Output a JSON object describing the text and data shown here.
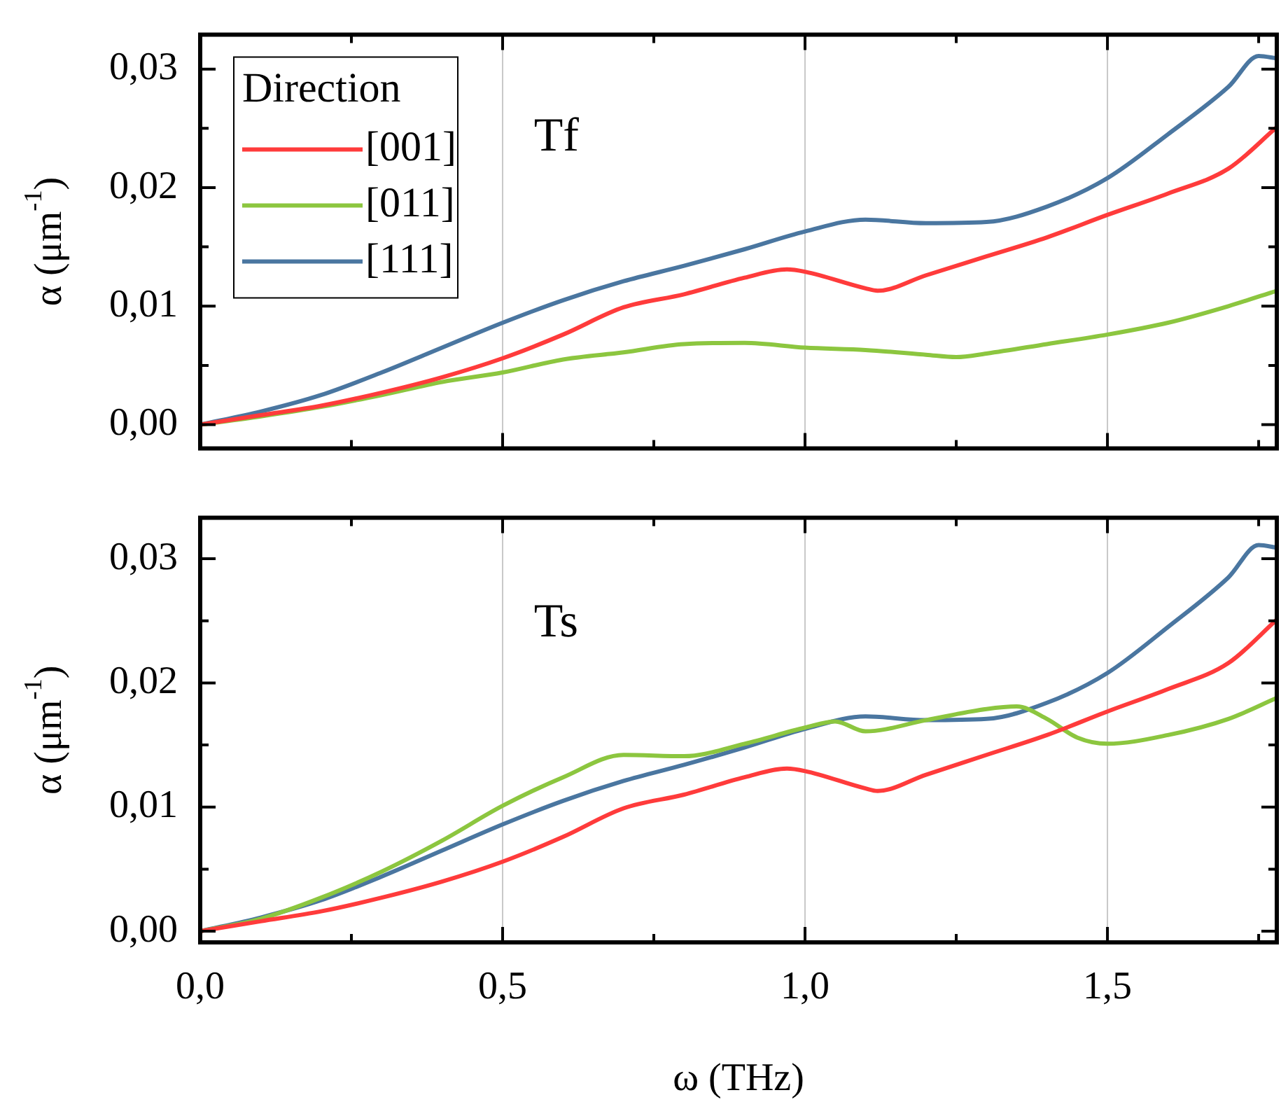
{
  "chart_data": [
    {
      "type": "line",
      "ylabel": "α (μm$^{-1}$)",
      "annotations": [
        "Tf"
      ],
      "legend_title": "Direction",
      "legend": "top left",
      "grid": "x",
      "tick_labels": "y",
      "xlim": [
        0,
        1.78
      ],
      "ylim": [
        -0.002,
        0.0329
      ],
      "xticks": [
        {
          "value": 0,
          "label": null
        },
        {
          "value": 0.25,
          "label": null
        },
        {
          "value": 0.5,
          "label": null
        },
        {
          "value": 0.75,
          "label": null
        },
        {
          "value": 1,
          "label": null
        },
        {
          "value": 1.25,
          "label": null
        },
        {
          "value": 1.5,
          "label": null
        },
        {
          "value": 1.75,
          "label": null
        }
      ],
      "yticks": [
        {
          "value": 0,
          "label": "0,00"
        },
        {
          "value": 0.005,
          "label": null
        },
        {
          "value": 0.01,
          "label": "0,01"
        },
        {
          "value": 0.015,
          "label": null
        },
        {
          "value": 0.02,
          "label": "0,02"
        },
        {
          "value": 0.025,
          "label": null
        },
        {
          "value": 0.03,
          "label": "0,03"
        }
      ],
      "series": [
        {
          "name": "[001]",
          "color": "#ff3b3b",
          "x": [
            0,
            0.1,
            0.2,
            0.3,
            0.4,
            0.5,
            0.6,
            0.7,
            0.8,
            0.9,
            0.97,
            1.0,
            1.1,
            1.12,
            1.2,
            1.3,
            1.4,
            1.5,
            1.6,
            1.7,
            1.78
          ],
          "values": [
            0,
            0.0008,
            0.0016,
            0.0027,
            0.004,
            0.0056,
            0.0076,
            0.0099,
            0.011,
            0.0124,
            0.0131,
            0.0129,
            0.0115,
            0.0113,
            0.0126,
            0.0142,
            0.0158,
            0.0177,
            0.0195,
            0.0216,
            0.0251
          ]
        },
        {
          "name": "[011]",
          "color": "#8cc63f",
          "x": [
            0,
            0.1,
            0.2,
            0.3,
            0.4,
            0.5,
            0.6,
            0.7,
            0.8,
            0.9,
            1.0,
            1.1,
            1.2,
            1.25,
            1.3,
            1.4,
            1.5,
            1.6,
            1.7,
            1.78
          ],
          "values": [
            0,
            0.0007,
            0.0015,
            0.0025,
            0.0036,
            0.0044,
            0.0055,
            0.0061,
            0.0068,
            0.0069,
            0.0065,
            0.0063,
            0.0059,
            0.0057,
            0.006,
            0.0068,
            0.0076,
            0.0086,
            0.01,
            0.0113
          ]
        },
        {
          "name": "[111]",
          "color": "#4a76a0",
          "x": [
            0,
            0.1,
            0.2,
            0.3,
            0.4,
            0.5,
            0.6,
            0.7,
            0.8,
            0.9,
            1.0,
            1.1,
            1.2,
            1.3,
            1.4,
            1.5,
            1.6,
            1.7,
            1.75,
            1.78
          ],
          "values": [
            0,
            0.0011,
            0.0025,
            0.0044,
            0.0065,
            0.0086,
            0.0105,
            0.0121,
            0.0134,
            0.0148,
            0.0163,
            0.0173,
            0.017,
            0.0171,
            0.0184,
            0.0208,
            0.0245,
            0.0285,
            0.0311,
            0.0309
          ]
        }
      ]
    },
    {
      "type": "line",
      "xlabel": "ω (THz)",
      "ylabel": "α (μm$^{-1}$)",
      "annotations": [
        "Ts"
      ],
      "grid": "x",
      "xlim": [
        0,
        1.78
      ],
      "ylim": [
        -0.0009,
        0.0333
      ],
      "xticks": [
        {
          "value": 0,
          "label": "0,0"
        },
        {
          "value": 0.25,
          "label": null
        },
        {
          "value": 0.5,
          "label": "0,5"
        },
        {
          "value": 0.75,
          "label": null
        },
        {
          "value": 1,
          "label": "1,0"
        },
        {
          "value": 1.25,
          "label": null
        },
        {
          "value": 1.5,
          "label": "1,5"
        },
        {
          "value": 1.75,
          "label": null
        }
      ],
      "yticks": [
        {
          "value": 0,
          "label": "0,00"
        },
        {
          "value": 0.005,
          "label": null
        },
        {
          "value": 0.01,
          "label": "0,01"
        },
        {
          "value": 0.015,
          "label": null
        },
        {
          "value": 0.02,
          "label": "0,02"
        },
        {
          "value": 0.025,
          "label": null
        },
        {
          "value": 0.03,
          "label": "0,03"
        }
      ],
      "series": [
        {
          "color": "#ff3b3b",
          "x": [
            0,
            0.1,
            0.2,
            0.3,
            0.4,
            0.5,
            0.6,
            0.7,
            0.8,
            0.9,
            0.97,
            1.0,
            1.1,
            1.12,
            1.2,
            1.3,
            1.4,
            1.5,
            1.6,
            1.7,
            1.78
          ],
          "values": [
            0,
            0.0008,
            0.0016,
            0.0027,
            0.004,
            0.0056,
            0.0076,
            0.0099,
            0.011,
            0.0124,
            0.0131,
            0.0129,
            0.0115,
            0.0113,
            0.0126,
            0.0142,
            0.0158,
            0.0177,
            0.0195,
            0.0216,
            0.0251
          ]
        },
        {
          "color": "#8cc63f",
          "x": [
            0,
            0.1,
            0.2,
            0.3,
            0.4,
            0.5,
            0.6,
            0.7,
            0.8,
            0.9,
            1.0,
            1.05,
            1.1,
            1.2,
            1.3,
            1.35,
            1.4,
            1.45,
            1.5,
            1.6,
            1.7,
            1.78
          ],
          "values": [
            0,
            0.001,
            0.0027,
            0.0048,
            0.0073,
            0.0101,
            0.0124,
            0.0142,
            0.0141,
            0.0151,
            0.0164,
            0.0169,
            0.0161,
            0.017,
            0.0179,
            0.0181,
            0.0171,
            0.0156,
            0.0151,
            0.0158,
            0.0171,
            0.0188
          ]
        },
        {
          "color": "#4a76a0",
          "x": [
            0,
            0.1,
            0.2,
            0.3,
            0.4,
            0.5,
            0.6,
            0.7,
            0.8,
            0.9,
            1.0,
            1.1,
            1.2,
            1.3,
            1.4,
            1.5,
            1.6,
            1.7,
            1.75,
            1.78
          ],
          "values": [
            0,
            0.0011,
            0.0025,
            0.0044,
            0.0065,
            0.0086,
            0.0105,
            0.0121,
            0.0134,
            0.0148,
            0.0163,
            0.0173,
            0.017,
            0.0171,
            0.0184,
            0.0208,
            0.0245,
            0.0285,
            0.0311,
            0.0309
          ]
        }
      ]
    }
  ]
}
